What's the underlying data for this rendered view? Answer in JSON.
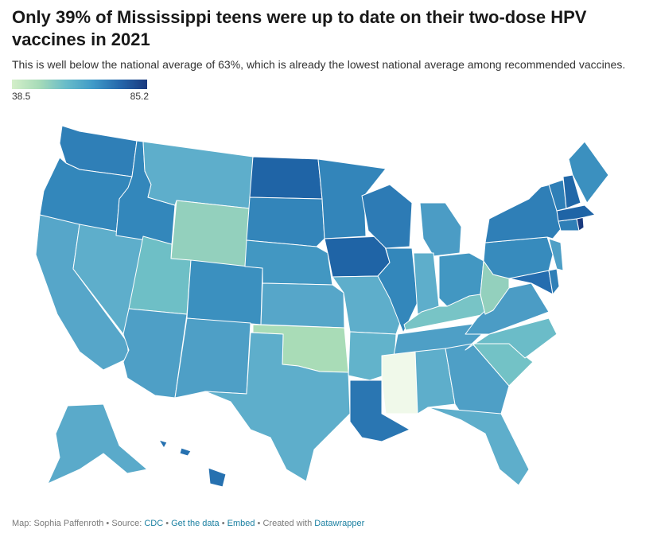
{
  "title": "Only 39% of Mississippi teens were up to date on their two-dose HPV vaccines in 2021",
  "subtitle": "This is well below the national average of 63%, which is already the lowest national average among recommended vaccines.",
  "legend": {
    "min": "38.5",
    "max": "85.2",
    "colors": [
      "#d4efc9",
      "#a7dbb8",
      "#68bcc9",
      "#3f9ac8",
      "#2567ab",
      "#1a3a7e"
    ]
  },
  "map_data": {
    "type": "choropleth",
    "region": "United States",
    "value_range": [
      38.5,
      85.2
    ],
    "states": [
      {
        "name": "Washington",
        "value": 72,
        "color": "#2f7fb7"
      },
      {
        "name": "Oregon",
        "value": 70,
        "color": "#3387bb"
      },
      {
        "name": "California",
        "value": 62,
        "color": "#56a6c9"
      },
      {
        "name": "Nevada",
        "value": 60,
        "color": "#5eaecb"
      },
      {
        "name": "Idaho",
        "value": 70,
        "color": "#3387bb"
      },
      {
        "name": "Montana",
        "value": 59,
        "color": "#5eaecb"
      },
      {
        "name": "Wyoming",
        "value": 48,
        "color": "#93d0bd"
      },
      {
        "name": "Utah",
        "value": 55,
        "color": "#6ebfc6"
      },
      {
        "name": "Arizona",
        "value": 64,
        "color": "#4e9fc6"
      },
      {
        "name": "Colorado",
        "value": 68,
        "color": "#3b90bf"
      },
      {
        "name": "New Mexico",
        "value": 64,
        "color": "#4e9fc6"
      },
      {
        "name": "North Dakota",
        "value": 80,
        "color": "#1f64a6"
      },
      {
        "name": "South Dakota",
        "value": 71,
        "color": "#3385ba"
      },
      {
        "name": "Nebraska",
        "value": 66,
        "color": "#4297c2"
      },
      {
        "name": "Kansas",
        "value": 62,
        "color": "#56a6c9"
      },
      {
        "name": "Oklahoma",
        "value": 46,
        "color": "#a9dcb7"
      },
      {
        "name": "Texas",
        "value": 60,
        "color": "#5eaecb"
      },
      {
        "name": "Minnesota",
        "value": 71,
        "color": "#3385ba"
      },
      {
        "name": "Iowa",
        "value": 80,
        "color": "#1f64a6"
      },
      {
        "name": "Missouri",
        "value": 60,
        "color": "#5eaecb"
      },
      {
        "name": "Arkansas",
        "value": 58,
        "color": "#62b3cb"
      },
      {
        "name": "Louisiana",
        "value": 74,
        "color": "#2a76b2"
      },
      {
        "name": "Wisconsin",
        "value": 73,
        "color": "#2d7bb5"
      },
      {
        "name": "Illinois",
        "value": 70,
        "color": "#3387bb"
      },
      {
        "name": "Michigan",
        "value": 65,
        "color": "#4b9cc5"
      },
      {
        "name": "Indiana",
        "value": 60,
        "color": "#5eaecb"
      },
      {
        "name": "Ohio",
        "value": 66,
        "color": "#4297c2"
      },
      {
        "name": "Kentucky",
        "value": 53,
        "color": "#78c4c6"
      },
      {
        "name": "Tennessee",
        "value": 64,
        "color": "#4e9fc6"
      },
      {
        "name": "Mississippi",
        "value": 38.5,
        "color": "#f0f9ea"
      },
      {
        "name": "Alabama",
        "value": 60,
        "color": "#5eaecb"
      },
      {
        "name": "Georgia",
        "value": 64,
        "color": "#4e9fc6"
      },
      {
        "name": "Florida",
        "value": 60,
        "color": "#5eaecb"
      },
      {
        "name": "South Carolina",
        "value": 54,
        "color": "#73c2c6"
      },
      {
        "name": "North Carolina",
        "value": 56,
        "color": "#6bbcc8"
      },
      {
        "name": "Virginia",
        "value": 65,
        "color": "#4b9cc5"
      },
      {
        "name": "West Virginia",
        "value": 49,
        "color": "#93d0bd"
      },
      {
        "name": "Maryland",
        "value": 76,
        "color": "#256daf"
      },
      {
        "name": "Delaware",
        "value": 72,
        "color": "#2f7fb7"
      },
      {
        "name": "Pennsylvania",
        "value": 69,
        "color": "#378bbd"
      },
      {
        "name": "New Jersey",
        "value": 64,
        "color": "#4e9fc6"
      },
      {
        "name": "New York",
        "value": 72,
        "color": "#2f7fb7"
      },
      {
        "name": "Connecticut",
        "value": 72,
        "color": "#2f7fb7"
      },
      {
        "name": "Rhode Island",
        "value": 85.2,
        "color": "#1a3a7e"
      },
      {
        "name": "Massachusetts",
        "value": 80,
        "color": "#1f64a6"
      },
      {
        "name": "Vermont",
        "value": 72,
        "color": "#2f7fb7"
      },
      {
        "name": "New Hampshire",
        "value": 78,
        "color": "#2168a8"
      },
      {
        "name": "Maine",
        "value": 68,
        "color": "#3b90bf"
      },
      {
        "name": "Alaska",
        "value": 61,
        "color": "#5aaaca"
      },
      {
        "name": "Hawaii",
        "value": 75,
        "color": "#2671b0"
      }
    ]
  },
  "footer": {
    "prefix": "Map: Sophia Paffenroth • Source: ",
    "source": "CDC",
    "sep1": " • ",
    "get_data": "Get the data",
    "sep2": " • ",
    "embed": "Embed",
    "sep3": " • Created with ",
    "datawrapper": "Datawrapper"
  }
}
